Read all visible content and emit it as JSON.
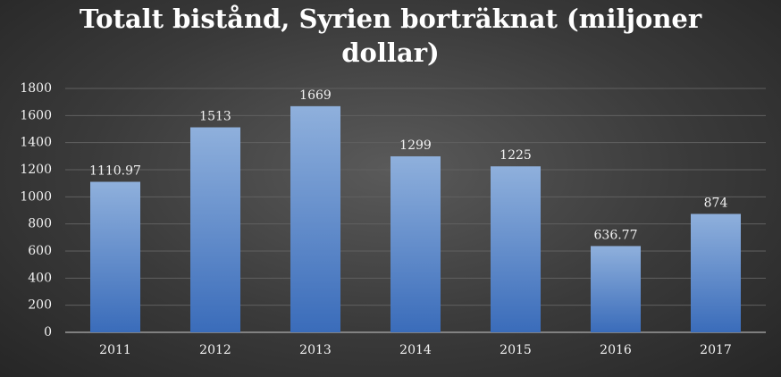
{
  "chart_data": {
    "type": "bar",
    "title": "Totalt bistånd, Syrien borträknat (miljoner dollar)",
    "categories": [
      "2011",
      "2012",
      "2013",
      "2014",
      "2015",
      "2016",
      "2017"
    ],
    "values": [
      1110.97,
      1513,
      1669,
      1299,
      1225,
      636.77,
      874
    ],
    "color": "#4a7cc4",
    "ylim": [
      0,
      1800
    ],
    "yticks": [
      0,
      200,
      400,
      600,
      800,
      1000,
      1200,
      1400,
      1600,
      1800
    ],
    "grid": true
  }
}
